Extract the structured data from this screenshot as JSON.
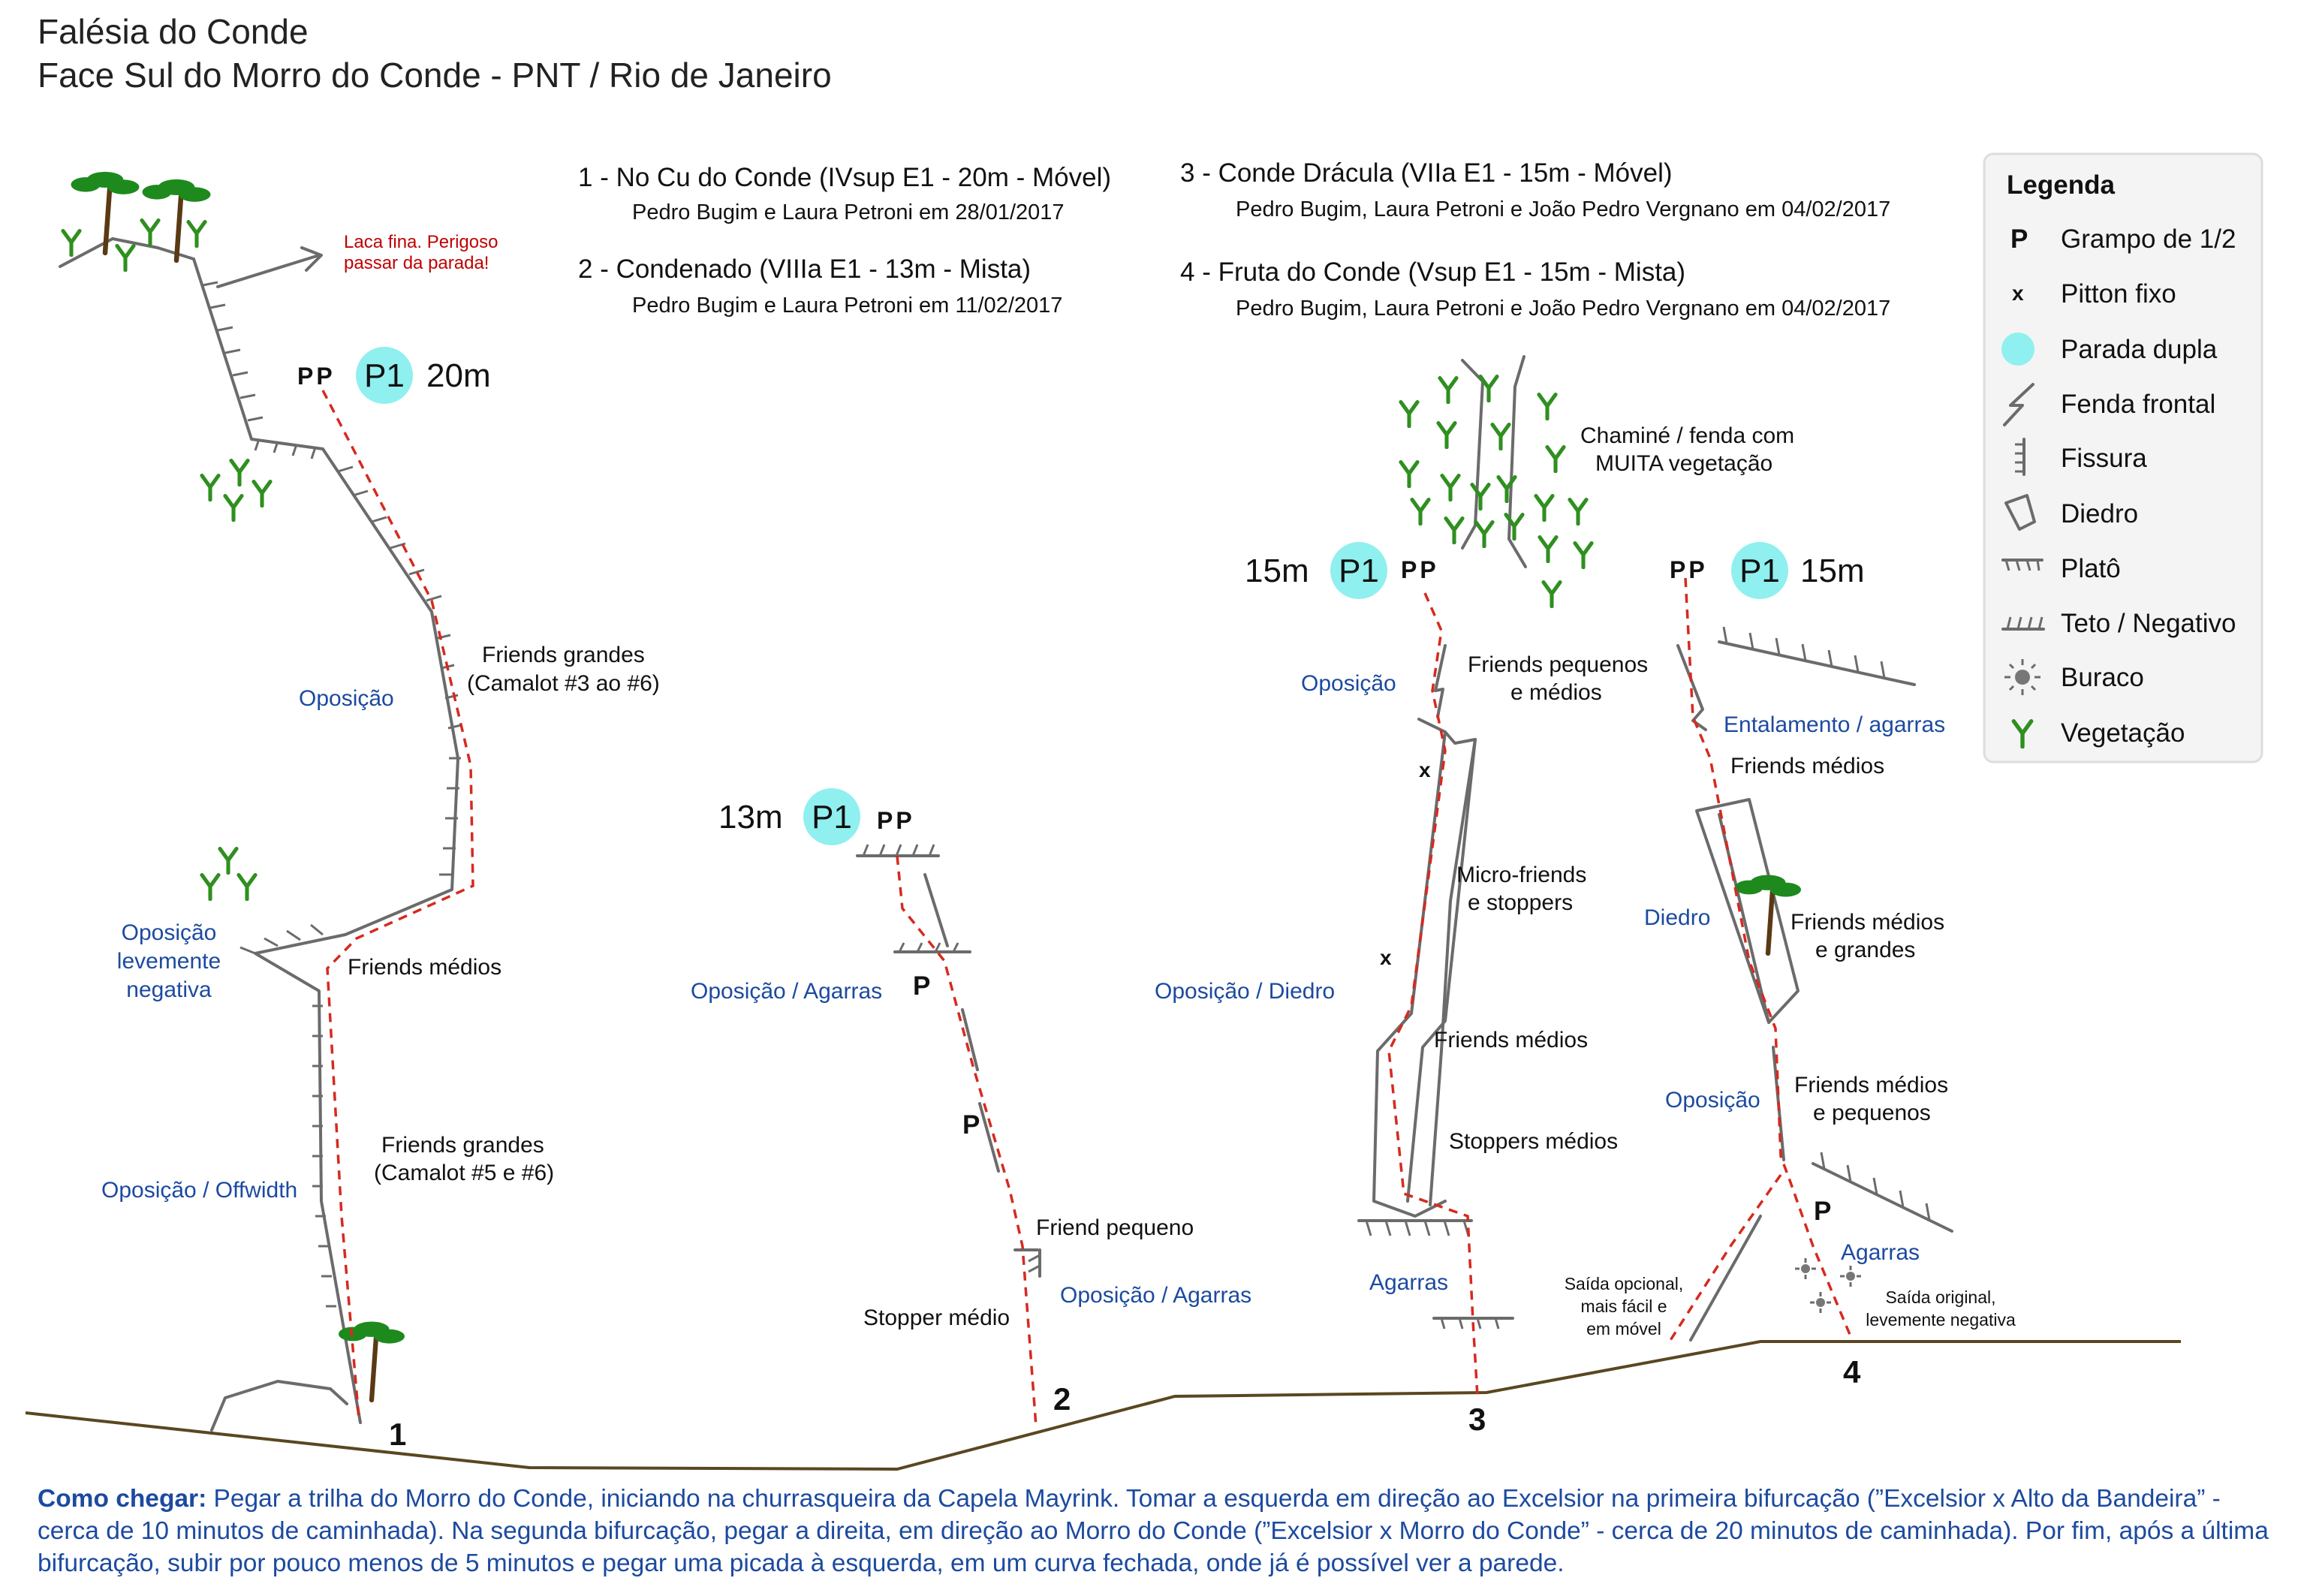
{
  "header": {
    "title": "Falésia do Conde",
    "subtitle": "Face Sul do Morro do Conde - PNT / Rio de Janeiro"
  },
  "routes": [
    {
      "title": "1 - No Cu do Conde (IVsup E1 - 20m - Móvel)",
      "authors": "Pedro Bugim e Laura Petroni em 28/01/2017"
    },
    {
      "title": "2 - Condenado (VIIIa E1 - 13m - Mista)",
      "authors": "Pedro Bugim e Laura Petroni em 11/02/2017"
    },
    {
      "title": "3 - Conde Drácula (VIIa E1 - 15m - Móvel)",
      "authors": "Pedro Bugim, Laura Petroni e João Pedro Vergnano em 04/02/2017"
    },
    {
      "title": "4 - Fruta do Conde (Vsup E1 - 15m - Mista)",
      "authors": "Pedro Bugim, Laura Petroni e João Pedro Vergnano em 04/02/2017"
    }
  ],
  "legend": {
    "title": "Legenda",
    "items": [
      {
        "symbol": "P",
        "label": "Grampo de 1/2",
        "icon": "bolt-icon"
      },
      {
        "symbol": "x",
        "label": "Pitton fixo",
        "icon": "piton-icon"
      },
      {
        "symbol": "",
        "label": "Parada dupla",
        "icon": "double-anchor-icon"
      },
      {
        "symbol": "",
        "label": "Fenda frontal",
        "icon": "crack-icon"
      },
      {
        "symbol": "",
        "label": "Fissura",
        "icon": "fissure-icon"
      },
      {
        "symbol": "",
        "label": "Diedro",
        "icon": "dihedral-icon"
      },
      {
        "symbol": "",
        "label": "Platô",
        "icon": "ledge-icon"
      },
      {
        "symbol": "",
        "label": "Teto / Negativo",
        "icon": "roof-icon"
      },
      {
        "symbol": "",
        "label": "Buraco",
        "icon": "pocket-icon"
      },
      {
        "symbol": "",
        "label": "Vegetação",
        "icon": "vegetation-icon"
      }
    ]
  },
  "anchor_label": "P1",
  "pp_label": "PP",
  "bolt_label": "P",
  "piton_label": "x",
  "route1": {
    "number": "1",
    "length": "20m",
    "warning": [
      "Laca fina. Perigoso",
      "passar da parada!"
    ],
    "notes": {
      "friends_grandes_top": [
        "Friends grandes",
        "(Camalot #3 ao #6)"
      ],
      "friends_medios": "Friends médios",
      "friends_grandes_bottom": [
        "Friends grandes",
        "(Camalot #5 e #6)"
      ]
    },
    "techniques": {
      "oposicao": "Oposição",
      "oposicao_negativa": [
        "Oposição",
        "levemente",
        "negativa"
      ],
      "offwidth": "Oposição / Offwidth"
    }
  },
  "route2": {
    "number": "2",
    "length": "13m",
    "notes": {
      "friend_pequeno": "Friend pequeno",
      "stopper_medio": "Stopper médio"
    },
    "techniques": {
      "top": "Oposição / Agarras",
      "bottom": "Oposição / Agarras"
    }
  },
  "route3": {
    "number": "3",
    "length": "15m",
    "notes": {
      "chimney": [
        "Chaminé / fenda com",
        "MUITA vegetação"
      ],
      "friends_pequenos": [
        "Friends pequenos",
        "e médios"
      ],
      "micro_friends": [
        "Micro-friends",
        "e stoppers"
      ],
      "friends_medios": "Friends médios",
      "stoppers_medios": "Stoppers médios"
    },
    "techniques": {
      "oposicao": "Oposição",
      "diedro": "Oposição / Diedro",
      "agarras": "Agarras"
    }
  },
  "route4": {
    "number": "4",
    "length": "15m",
    "notes": {
      "friends_medios": "Friends médios",
      "friends_medios_grandes": [
        "Friends médios",
        "e grandes"
      ],
      "friends_medios_pequenos": [
        "Friends médios",
        "e pequenos"
      ],
      "saida_opcional": [
        "Saída opcional,",
        "mais fácil e",
        "em móvel"
      ],
      "saida_original": [
        "Saída original,",
        "levemente negativa"
      ]
    },
    "techniques": {
      "entalamento": "Entalamento / agarras",
      "diedro": "Diedro",
      "oposicao": "Oposição",
      "agarras": "Agarras"
    }
  },
  "approach": {
    "label": "Como chegar:",
    "text": " Pegar a trilha do Morro do Conde, iniciando na churrasqueira da Capela Mayrink. Tomar a esquerda em direção ao Excelsior na primeira bifurcação (”Excelsior x Alto da Bandeira” - cerca de 10 minutos de caminhada). Na segunda bifurcação, pegar a direita, em direção ao Morro do Conde (”Excelsior x Morro do Conde” - cerca de 20 minutos de caminhada). Por fim, após a última bifurcação, subir por pouco menos de 5 minutos e pegar uma picada à esquerda, em um curva fechada, onde já é possível ver a parede."
  },
  "colors": {
    "route_line": "#d62a1f",
    "rock": "#6b6b6b",
    "technique_text": "#1c4aa0",
    "warning_text": "#c00000",
    "anchor_fill": "#8ff0ef",
    "vegetation": "#2f8f1f",
    "tree_trunk": "#5a3a14",
    "ground": "#5a4720"
  }
}
